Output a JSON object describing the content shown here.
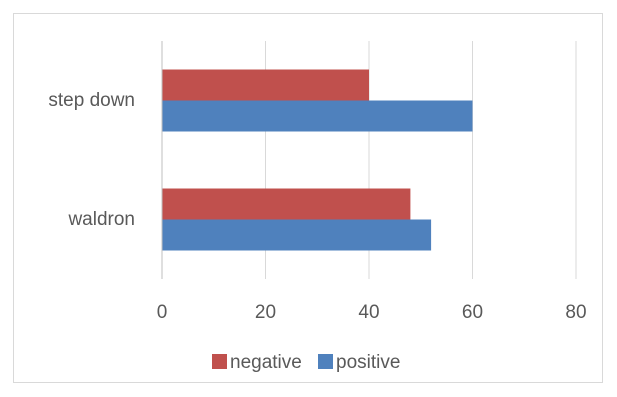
{
  "chart_data": {
    "type": "bar",
    "orientation": "horizontal",
    "categories": [
      "waldron",
      "step down"
    ],
    "series": [
      {
        "name": "positive",
        "values": [
          52,
          60
        ],
        "color": "#4f81bd"
      },
      {
        "name": "negative",
        "values": [
          48,
          40
        ],
        "color": "#c0504d"
      }
    ],
    "xlim": [
      0,
      80
    ],
    "x_ticks": [
      "0",
      "20",
      "40",
      "60",
      "80"
    ],
    "grid": true,
    "legend_placement": "bottom",
    "legend_order": [
      "negative",
      "positive"
    ],
    "title": "",
    "xlabel": "",
    "ylabel": ""
  }
}
